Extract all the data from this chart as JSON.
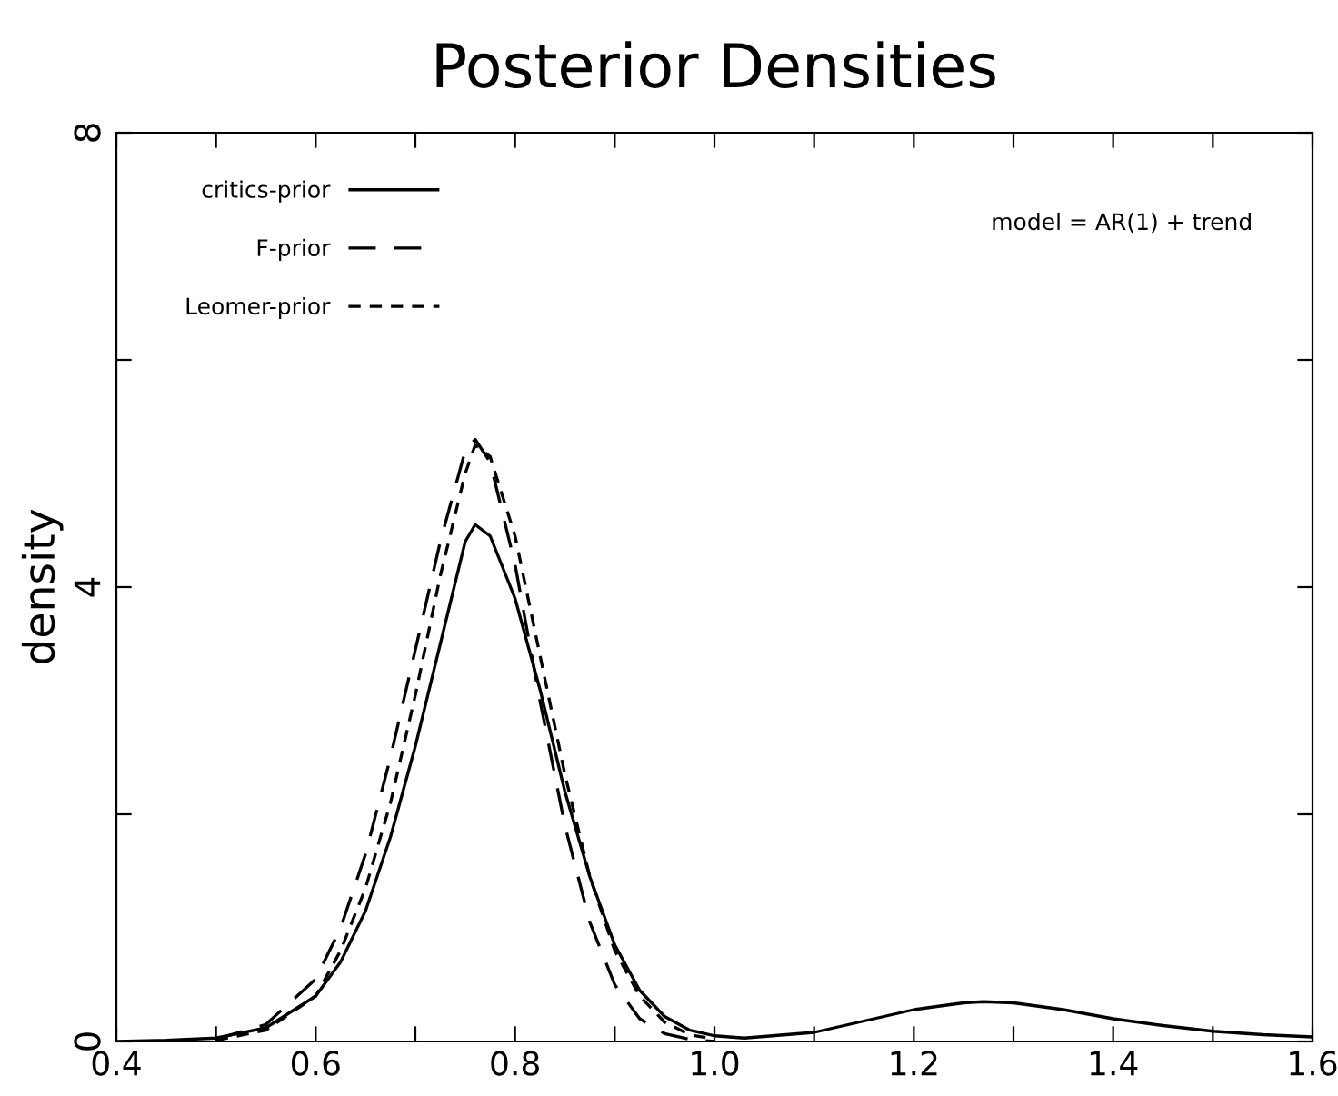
{
  "chart_data": {
    "type": "line",
    "title": "Posterior Densities",
    "ylabel": "density",
    "annotations": [
      "model = AR(1) + trend"
    ],
    "xlim": [
      0.4,
      1.6
    ],
    "xticks": [
      0.4,
      {
        "value": 0.5,
        "label": null
      },
      0.6,
      {
        "value": 0.7,
        "label": null
      },
      0.8,
      {
        "value": 0.9,
        "label": null
      },
      {
        "value": 1.0,
        "label": "1.0"
      },
      {
        "value": 1.1,
        "label": null
      },
      1.2,
      {
        "value": 1.3,
        "label": null
      },
      1.4,
      {
        "value": 1.5,
        "label": null
      },
      1.6
    ],
    "ylim": [
      0,
      8
    ],
    "yticks": [
      0,
      {
        "value": 2,
        "label": null
      },
      4,
      {
        "value": 6,
        "label": null
      },
      8
    ],
    "legend": "top left",
    "grid": false,
    "marker": "none",
    "series": [
      {
        "name": "critics-prior",
        "color": "#000000",
        "line_style": "solid",
        "x": [
          0.4,
          0.45,
          0.5,
          0.55,
          0.6,
          0.625,
          0.65,
          0.675,
          0.7,
          0.725,
          0.75,
          0.76,
          0.775,
          0.8,
          0.825,
          0.85,
          0.875,
          0.9,
          0.925,
          0.95,
          0.975,
          1.0,
          1.03,
          1.1,
          1.15,
          1.2,
          1.25,
          1.27,
          1.3,
          1.35,
          1.4,
          1.45,
          1.5,
          1.55,
          1.6
        ],
        "values": [
          0,
          0.01,
          0.03,
          0.12,
          0.4,
          0.7,
          1.15,
          1.8,
          2.6,
          3.5,
          4.4,
          4.55,
          4.45,
          3.9,
          3.1,
          2.2,
          1.45,
          0.85,
          0.45,
          0.22,
          0.1,
          0.05,
          0.03,
          0.08,
          0.18,
          0.28,
          0.34,
          0.35,
          0.34,
          0.28,
          0.2,
          0.14,
          0.09,
          0.06,
          0.04
        ]
      },
      {
        "name": "F-prior",
        "color": "#000000",
        "line_style": "dashed",
        "x": [
          0.5,
          0.55,
          0.6,
          0.625,
          0.65,
          0.675,
          0.7,
          0.725,
          0.75,
          0.76,
          0.775,
          0.8,
          0.825,
          0.85,
          0.875,
          0.9,
          0.925,
          0.95,
          0.975,
          1.0
        ],
        "values": [
          0.02,
          0.15,
          0.55,
          1.0,
          1.65,
          2.5,
          3.45,
          4.4,
          5.2,
          5.3,
          5.1,
          4.2,
          3.0,
          1.9,
          1.05,
          0.5,
          0.2,
          0.07,
          0.02,
          0
        ]
      },
      {
        "name": "Leomer-prior",
        "color": "#000000",
        "line_style": "dotted",
        "x": [
          0.5,
          0.55,
          0.6,
          0.625,
          0.65,
          0.675,
          0.7,
          0.725,
          0.75,
          0.76,
          0.775,
          0.8,
          0.825,
          0.85,
          0.875,
          0.9,
          0.925,
          0.95,
          0.975,
          1.0
        ],
        "values": [
          0.01,
          0.1,
          0.4,
          0.8,
          1.35,
          2.1,
          3.05,
          4.1,
          5.0,
          5.25,
          5.15,
          4.45,
          3.4,
          2.35,
          1.45,
          0.8,
          0.4,
          0.17,
          0.06,
          0.02
        ]
      }
    ]
  }
}
